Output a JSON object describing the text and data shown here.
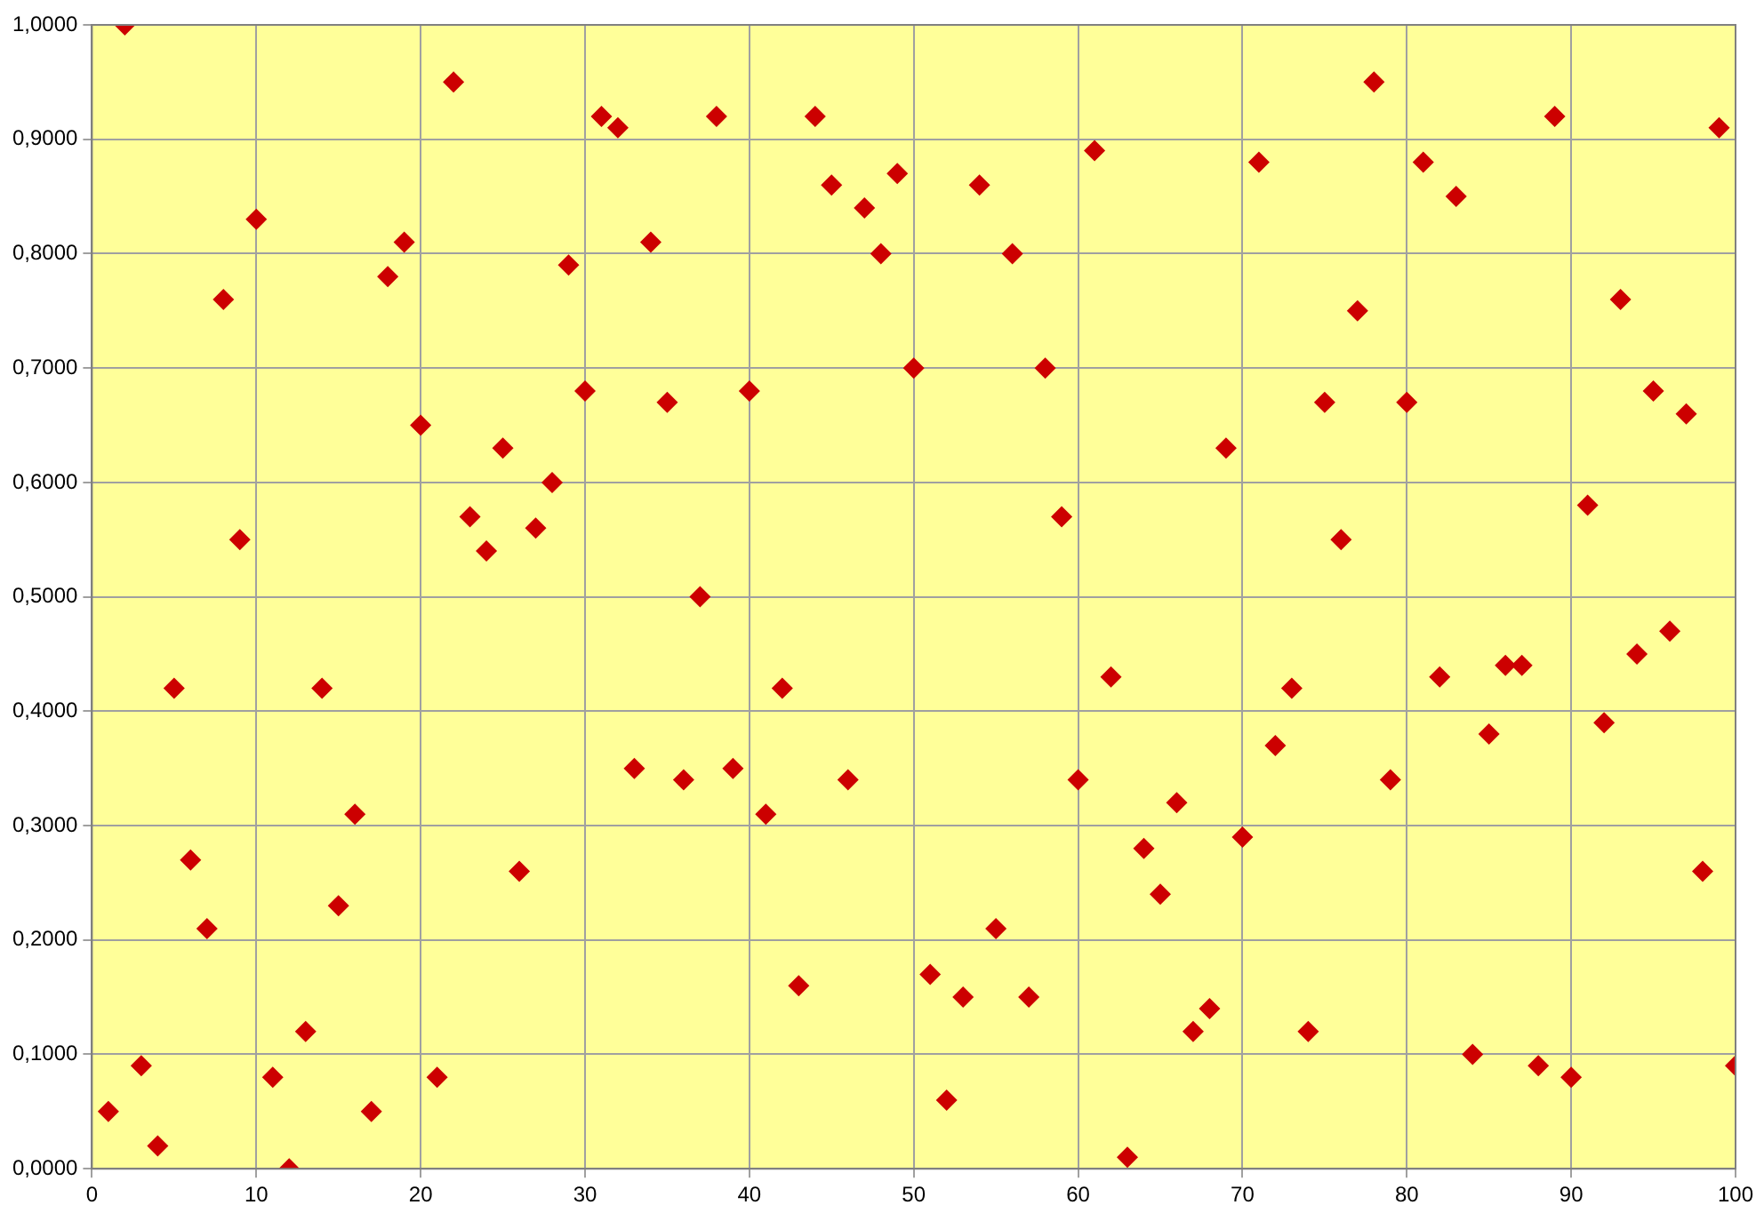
{
  "chart_data": {
    "type": "scatter",
    "marker": "diamond",
    "grid": true,
    "legend": false,
    "xlim": [
      0,
      100
    ],
    "xticks": [
      0,
      10,
      20,
      30,
      40,
      50,
      60,
      70,
      80,
      90,
      100
    ],
    "ylim": [
      0,
      1
    ],
    "yticks": [
      {
        "value": 0,
        "label": "0,0000"
      },
      {
        "value": 0.1,
        "label": "0,1000"
      },
      {
        "value": 0.2,
        "label": "0,2000"
      },
      {
        "value": 0.3,
        "label": "0,3000"
      },
      {
        "value": 0.4,
        "label": "0,4000"
      },
      {
        "value": 0.5,
        "label": "0,5000"
      },
      {
        "value": 0.6,
        "label": "0,6000"
      },
      {
        "value": 0.7,
        "label": "0,7000"
      },
      {
        "value": 0.8,
        "label": "0,8000"
      },
      {
        "value": 0.9,
        "label": "0,9000"
      },
      {
        "value": 1,
        "label": "1,0000"
      }
    ],
    "x": [
      1,
      2,
      3,
      4,
      5,
      6,
      7,
      8,
      9,
      10,
      11,
      12,
      13,
      14,
      15,
      16,
      17,
      18,
      19,
      20,
      21,
      22,
      23,
      24,
      25,
      26,
      27,
      28,
      29,
      30,
      31,
      32,
      33,
      34,
      35,
      36,
      37,
      38,
      39,
      40,
      41,
      42,
      43,
      44,
      45,
      46,
      47,
      48,
      49,
      50,
      51,
      52,
      53,
      54,
      55,
      56,
      57,
      58,
      59,
      60,
      61,
      62,
      63,
      64,
      65,
      66,
      67,
      68,
      69,
      70,
      71,
      72,
      73,
      74,
      75,
      76,
      77,
      78,
      79,
      80,
      81,
      82,
      83,
      84,
      85,
      86,
      87,
      88,
      89,
      90,
      91,
      92,
      93,
      94,
      95,
      96,
      97,
      98,
      99,
      100
    ],
    "series": [
      {
        "color": "#cc0000",
        "values": [
          0.05,
          1.0,
          0.09,
          0.02,
          0.42,
          0.27,
          0.21,
          0.76,
          0.55,
          0.83,
          0.08,
          0.0,
          0.12,
          0.42,
          0.23,
          0.31,
          0.05,
          0.78,
          0.81,
          0.65,
          0.08,
          0.95,
          0.57,
          0.54,
          0.63,
          0.26,
          0.56,
          0.6,
          0.79,
          0.68,
          0.92,
          0.91,
          0.35,
          0.81,
          0.67,
          0.34,
          0.5,
          0.92,
          0.35,
          0.68,
          0.31,
          0.42,
          0.16,
          0.92,
          0.86,
          0.34,
          0.84,
          0.8,
          0.87,
          0.7,
          0.17,
          0.06,
          0.15,
          0.86,
          0.21,
          0.8,
          0.15,
          0.7,
          0.57,
          0.34,
          0.89,
          0.43,
          0.01,
          0.28,
          0.24,
          0.32,
          0.12,
          0.14,
          0.63,
          0.29,
          0.88,
          0.37,
          0.42,
          0.12,
          0.67,
          0.55,
          0.75,
          0.95,
          0.34,
          0.67,
          0.88,
          0.43,
          0.85,
          0.1,
          0.38,
          0.44,
          0.44,
          0.09,
          0.92,
          0.08,
          0.58,
          0.39,
          0.76,
          0.45,
          0.68,
          0.47,
          0.66,
          0.26,
          0.91,
          0.09
        ]
      }
    ]
  }
}
